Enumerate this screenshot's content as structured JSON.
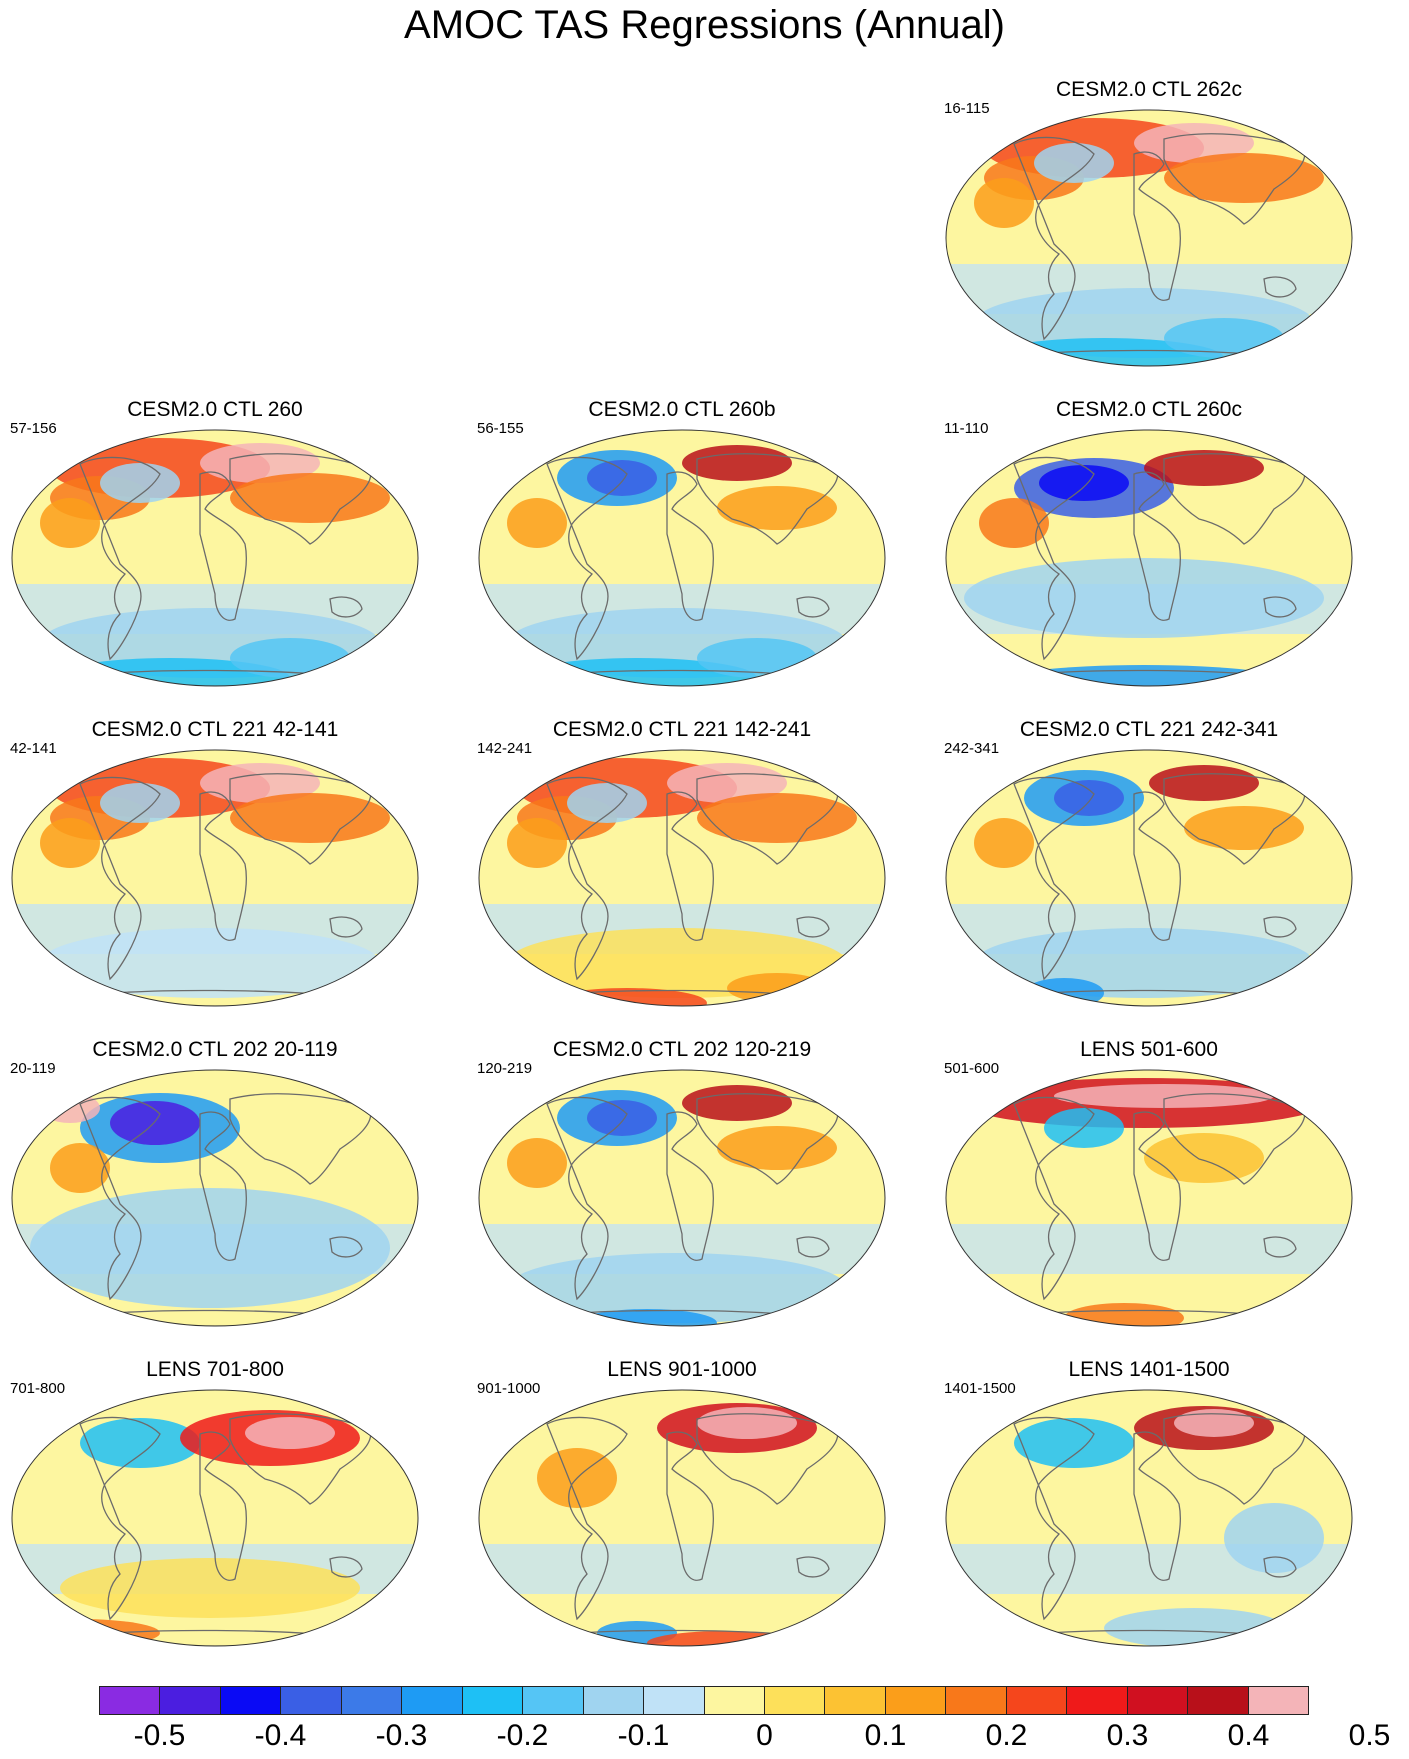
{
  "title": "AMOC TAS Regressions (Annual)",
  "palette": [
    "#8a2be2",
    "#4b1ee0",
    "#0a0af5",
    "#3a5fe5",
    "#3c7ae8",
    "#1e9bf4",
    "#1ec0f5",
    "#55c5f5",
    "#a0d4f0",
    "#c0e2f7",
    "#fdf6a0",
    "#fde05a",
    "#fcc233",
    "#fb9e1a",
    "#f8781a",
    "#f5461c",
    "#ef1a1a",
    "#d01020",
    "#b8101a",
    "#f4b4b8"
  ],
  "colorbar": {
    "labels": [
      "-0.5",
      "-0.4",
      "-0.3",
      "-0.2",
      "-0.1",
      "0",
      "0.1",
      "0.2",
      "0.3",
      "0.4",
      "0.5"
    ]
  },
  "panels": [
    {
      "title": "CESM2.0 CTL 262c",
      "years": "16-115"
    },
    {
      "title": "CESM2.0 CTL 260",
      "years": "57-156"
    },
    {
      "title": "CESM2.0 CTL 260b",
      "years": "56-155"
    },
    {
      "title": "CESM2.0 CTL 260c",
      "years": "11-110"
    },
    {
      "title": "CESM2.0 CTL 221 42-141",
      "years": "42-141"
    },
    {
      "title": "CESM2.0 CTL 221 142-241",
      "years": "142-241"
    },
    {
      "title": "CESM2.0 CTL 221 242-341",
      "years": "242-341"
    },
    {
      "title": "CESM2.0 CTL 202 20-119",
      "years": "20-119"
    },
    {
      "title": "CESM2.0 CTL 202 120-219",
      "years": "120-219"
    },
    {
      "title": "LENS 501-600",
      "years": "501-600"
    },
    {
      "title": "LENS 701-800",
      "years": "701-800"
    },
    {
      "title": "LENS 901-1000",
      "years": "901-1000"
    },
    {
      "title": "LENS 1401-1500",
      "years": "1401-1500"
    }
  ]
}
